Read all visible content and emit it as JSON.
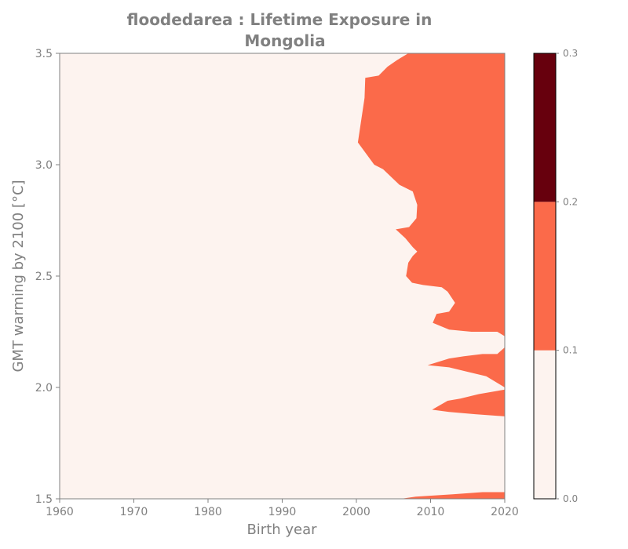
{
  "chart_data": {
    "type": "contour",
    "title_line1": "floodedarea : Lifetime Exposure in",
    "title_line2": "Mongolia",
    "xlabel": "Birth year",
    "ylabel": "GMT warming by 2100 [°C]",
    "xlim": [
      1960,
      2020
    ],
    "ylim": [
      1.5,
      3.5
    ],
    "xticks": [
      "1960",
      "1970",
      "1980",
      "1990",
      "2000",
      "2010",
      "2020"
    ],
    "yticks": [
      "1.5",
      "2.0",
      "2.5",
      "3.0",
      "3.5"
    ],
    "colors": {
      "level_0": "#fdf3ef",
      "level_1": "#fb6a4a",
      "level_2": "#67000d",
      "axis": "#808080"
    },
    "colorbar": {
      "levels": [
        0.0,
        0.1,
        0.2,
        0.3
      ],
      "ticks": [
        "0.0",
        "0.1",
        "0.2",
        "0.3"
      ]
    },
    "regions": [
      {
        "level": 1,
        "points": [
          [
            2007.0,
            3.5
          ],
          [
            2020.0,
            3.5
          ],
          [
            2020.0,
            2.23
          ],
          [
            2019.0,
            2.25
          ],
          [
            2015.5,
            2.25
          ],
          [
            2012.5,
            2.26
          ],
          [
            2010.3,
            2.29
          ],
          [
            2010.8,
            2.33
          ],
          [
            2012.5,
            2.34
          ],
          [
            2013.3,
            2.38
          ],
          [
            2012.3,
            2.43
          ],
          [
            2011.5,
            2.45
          ],
          [
            2009.0,
            2.46
          ],
          [
            2007.5,
            2.47
          ],
          [
            2006.7,
            2.5
          ],
          [
            2007.0,
            2.56
          ],
          [
            2007.6,
            2.59
          ],
          [
            2008.2,
            2.61
          ],
          [
            2007.6,
            2.63
          ],
          [
            2006.6,
            2.67
          ],
          [
            2005.3,
            2.71
          ],
          [
            2007.1,
            2.72
          ],
          [
            2008.1,
            2.76
          ],
          [
            2008.2,
            2.82
          ],
          [
            2007.6,
            2.88
          ],
          [
            2005.8,
            2.91
          ],
          [
            2003.6,
            2.98
          ],
          [
            2002.4,
            3.0
          ],
          [
            2000.2,
            3.1
          ],
          [
            2001.1,
            3.3
          ],
          [
            2001.2,
            3.39
          ],
          [
            2003.0,
            3.4
          ],
          [
            2004.2,
            3.44
          ],
          [
            2005.5,
            3.47
          ]
        ]
      },
      {
        "level": 1,
        "points": [
          [
            2009.6,
            2.1
          ],
          [
            2012.5,
            2.13
          ],
          [
            2014.5,
            2.14
          ],
          [
            2017.0,
            2.15
          ],
          [
            2019.0,
            2.15
          ],
          [
            2020.0,
            2.18
          ],
          [
            2020.0,
            2.0
          ],
          [
            2017.5,
            2.05
          ],
          [
            2015.0,
            2.07
          ],
          [
            2012.5,
            2.09
          ]
        ]
      },
      {
        "level": 1,
        "points": [
          [
            2010.2,
            1.9
          ],
          [
            2012.3,
            1.94
          ],
          [
            2014.0,
            1.95
          ],
          [
            2016.5,
            1.97
          ],
          [
            2020.0,
            1.99
          ],
          [
            2020.0,
            1.87
          ],
          [
            2016.0,
            1.88
          ],
          [
            2012.5,
            1.89
          ]
        ]
      },
      {
        "level": 1,
        "points": [
          [
            2006.0,
            1.5
          ],
          [
            2008.0,
            1.51
          ],
          [
            2013.0,
            1.52
          ],
          [
            2017.0,
            1.53
          ],
          [
            2020.0,
            1.53
          ],
          [
            2020.0,
            1.5
          ]
        ]
      }
    ]
  }
}
